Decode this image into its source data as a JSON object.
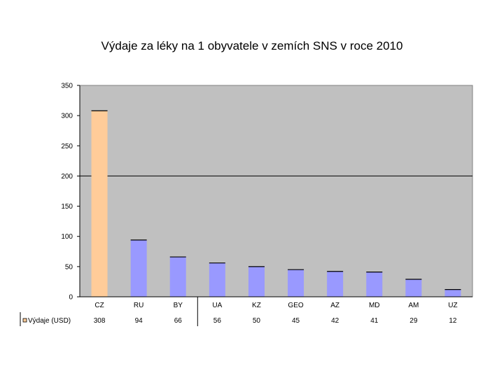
{
  "chart_data": {
    "type": "bar",
    "title": "Výdaje za léky na 1 obyvatele v zemích SNS v roce 2010",
    "categories": [
      "CZ",
      "RU",
      "BY",
      "UA",
      "KZ",
      "GEO",
      "AZ",
      "MD",
      "AM",
      "UZ"
    ],
    "series": [
      {
        "name": "Výdaje (USD)",
        "values": [
          308,
          94,
          66,
          56,
          50,
          45,
          42,
          41,
          29,
          12
        ]
      }
    ],
    "ylim": [
      0,
      350
    ],
    "yticks": [
      "0",
      "50",
      "100",
      "150",
      "200",
      "250",
      "300",
      "350"
    ],
    "reference_line": 200,
    "highlight_category": "CZ",
    "grid": false,
    "legend": "data-table-left",
    "colors": {
      "plot_background": "#c0c0c0",
      "bar": "#9999ff",
      "bar_highlight": "#ffcc99",
      "legend_key": "#ffcc99",
      "axis": "#000000"
    }
  }
}
